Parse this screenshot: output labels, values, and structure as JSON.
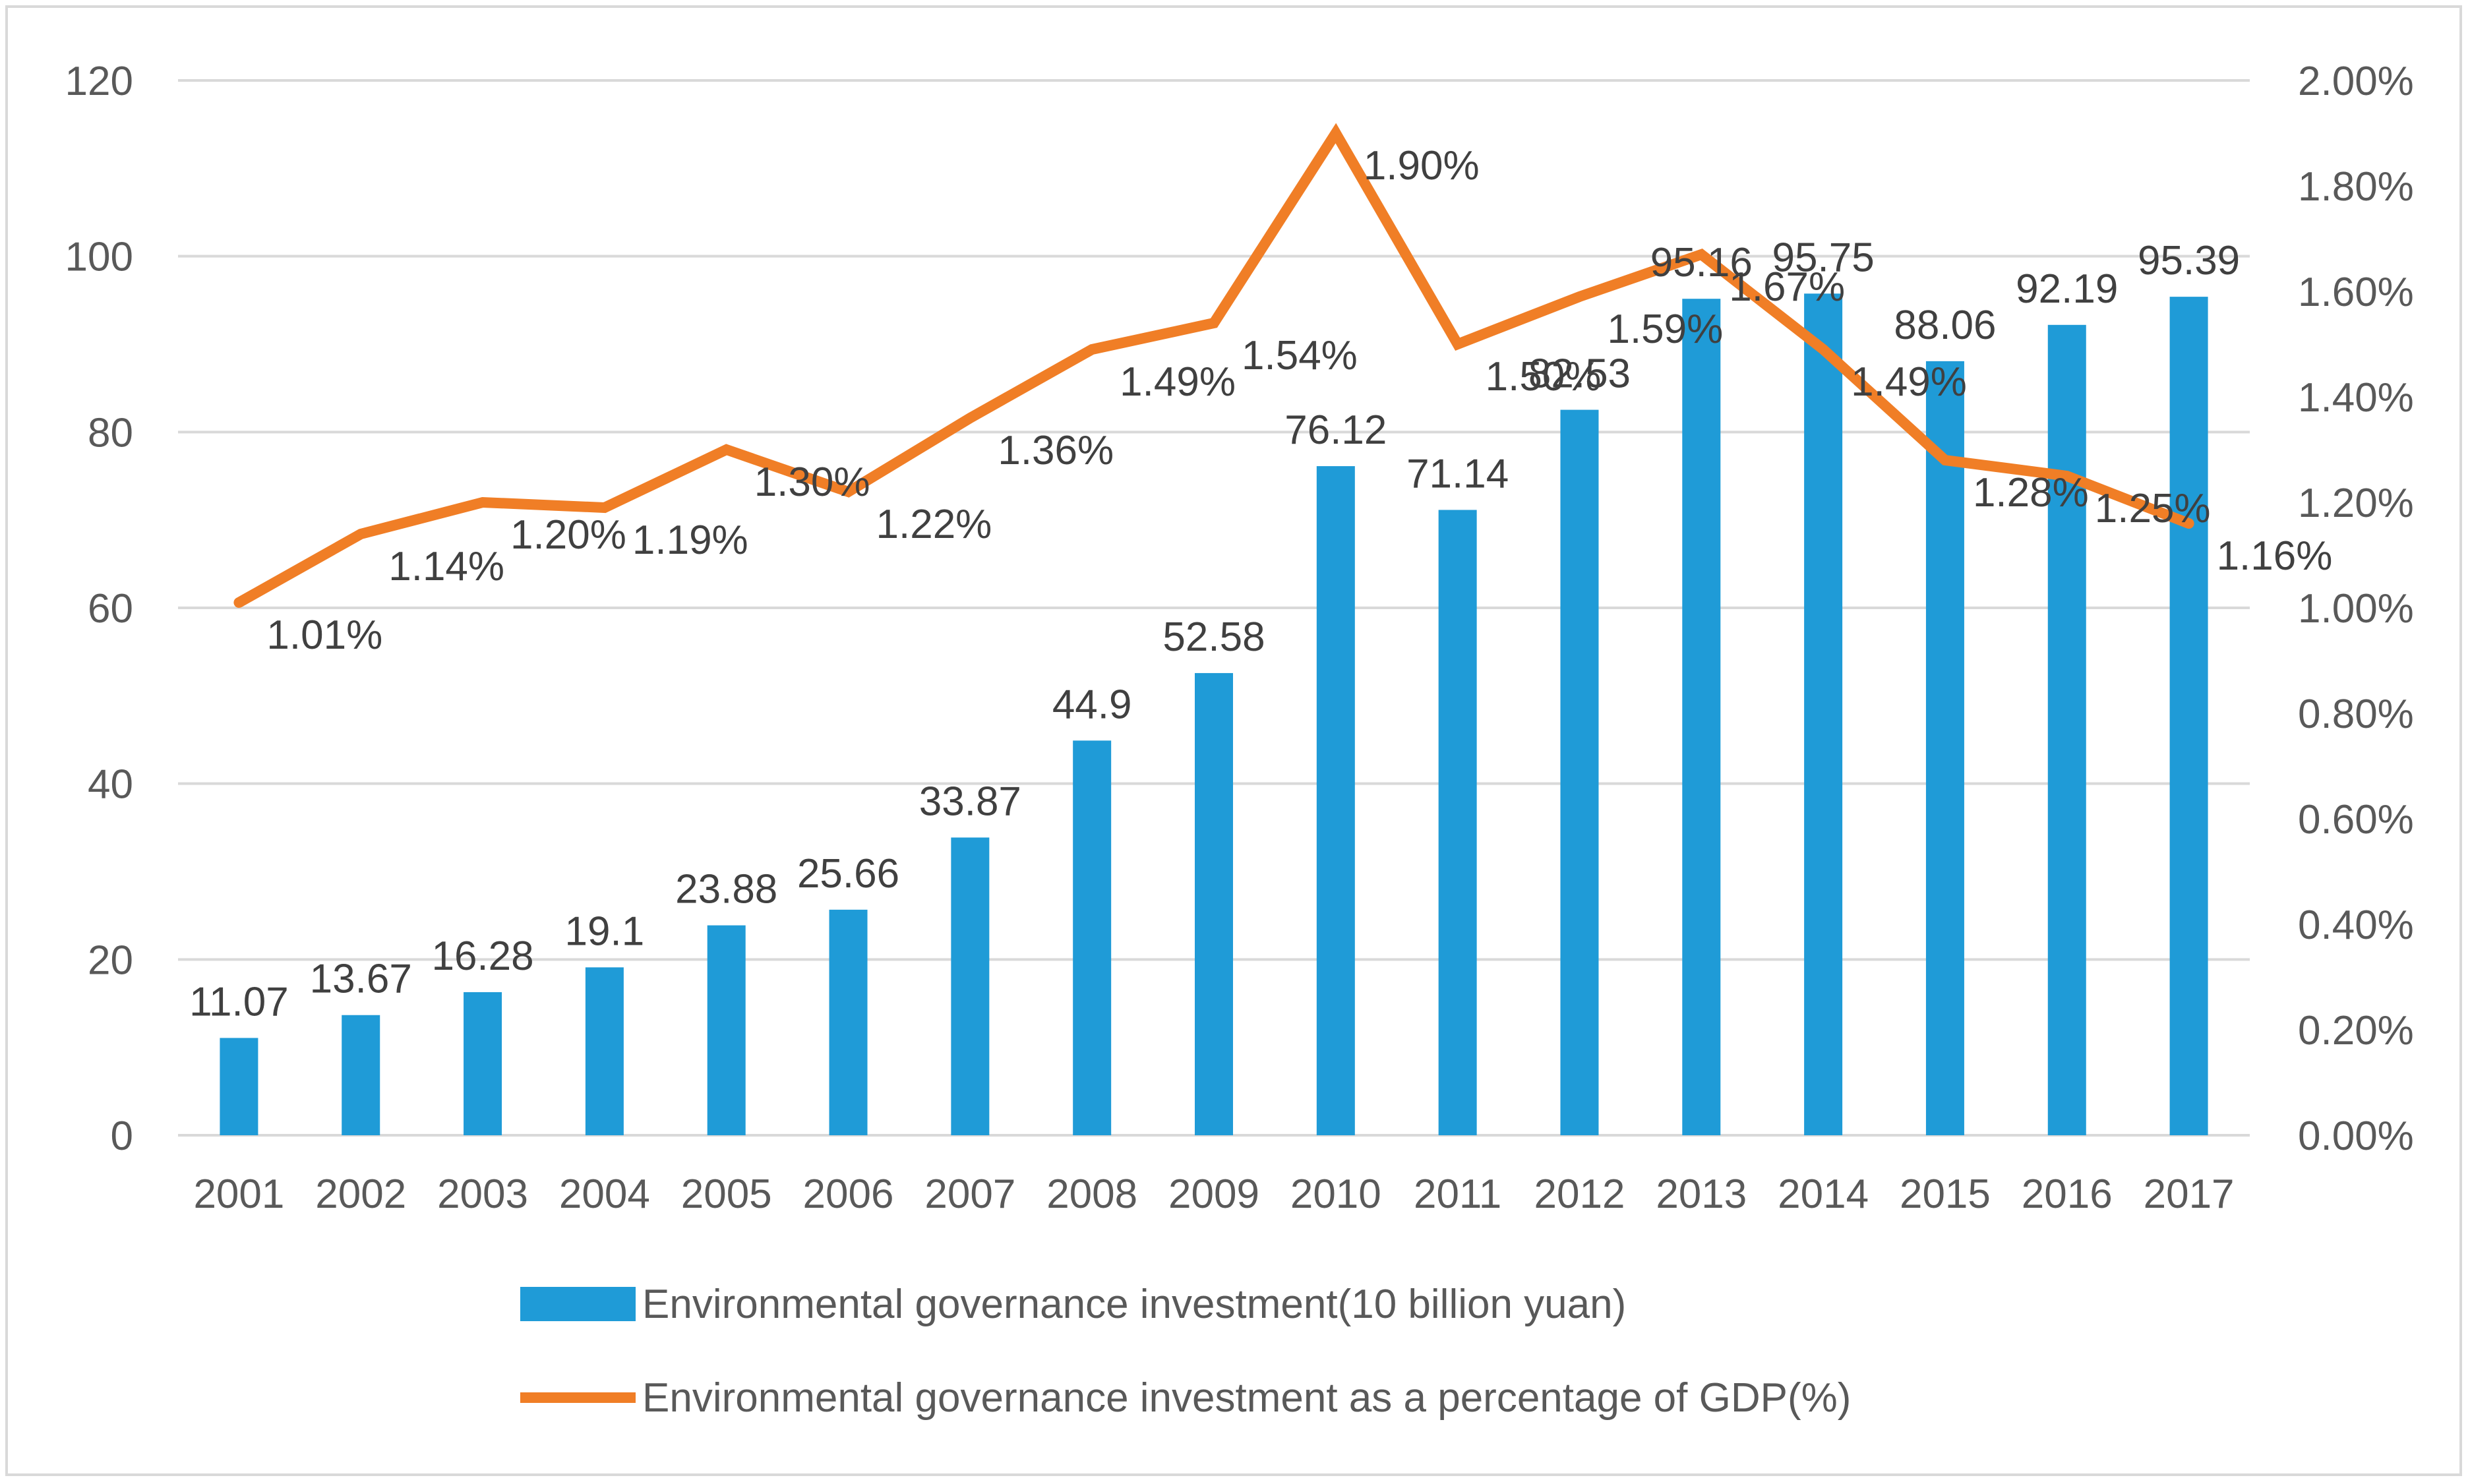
{
  "chart_data": {
    "type": "bar",
    "title": "",
    "xlabel": "",
    "ylabel": "",
    "categories": [
      "2001",
      "2002",
      "2003",
      "2004",
      "2005",
      "2006",
      "2007",
      "2008",
      "2009",
      "2010",
      "2011",
      "2012",
      "2013",
      "2014",
      "2015",
      "2016",
      "2017"
    ],
    "series": [
      {
        "name": "Environmental governance investment(10 billion yuan)",
        "type": "bar",
        "axis": "left",
        "color": "#1f9bd7",
        "values": [
          11.07,
          13.67,
          16.28,
          19.1,
          23.88,
          25.66,
          33.87,
          44.9,
          52.58,
          76.12,
          71.14,
          82.53,
          95.16,
          95.75,
          88.06,
          92.19,
          95.39
        ],
        "labels": [
          "11.07",
          "13.67",
          "16.28",
          "19.1",
          "23.88",
          "25.66",
          "33.87",
          "44.9",
          "52.58",
          "76.12",
          "71.14",
          "82.53",
          "95.16",
          "95.75",
          "88.06",
          "92.19",
          "95.39"
        ]
      },
      {
        "name": "Environmental governance investment as a percentage of GDP(%)",
        "type": "line",
        "axis": "right",
        "color": "#f07e26",
        "values": [
          1.01,
          1.14,
          1.2,
          1.19,
          1.3,
          1.22,
          1.36,
          1.49,
          1.54,
          1.9,
          1.5,
          1.59,
          1.67,
          1.49,
          1.28,
          1.25,
          1.16
        ],
        "labels": [
          "1.01%",
          "1.14%",
          "1.20%",
          "1.19%",
          "1.30%",
          "1.22%",
          "1.36%",
          "1.49%",
          "1.54%",
          "1.90%",
          "1.50%",
          "1.59%",
          "1.67%",
          "1.49%",
          "1.28%",
          "1.25%",
          "1.16%"
        ]
      }
    ],
    "y_left": {
      "min": 0,
      "max": 120,
      "step": 20,
      "ticks": [
        "0",
        "20",
        "40",
        "60",
        "80",
        "100",
        "120"
      ]
    },
    "y_right": {
      "min": 0,
      "max": 2.0,
      "step": 0.2,
      "ticks": [
        "0.00%",
        "0.20%",
        "0.40%",
        "0.60%",
        "0.80%",
        "1.00%",
        "1.20%",
        "1.40%",
        "1.60%",
        "1.80%",
        "2.00%"
      ]
    },
    "grid": true,
    "legend_position": "bottom"
  },
  "colors": {
    "grid": "#d9d9d9",
    "tick_text": "#595959",
    "label_text": "#404040",
    "frame": "#d9d9d9"
  }
}
